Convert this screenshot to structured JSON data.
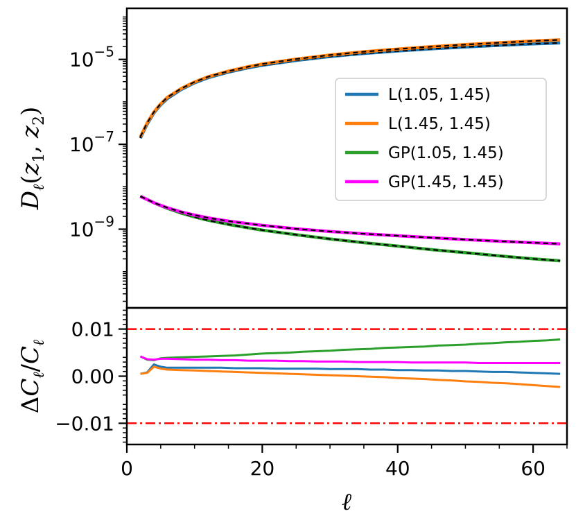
{
  "chart_data": [
    {
      "type": "line",
      "panel": "top",
      "yscale": "log",
      "ylabel": "D_ℓ(z_1, z_2)",
      "ylabel_parts": {
        "D": "D",
        "l": "ℓ",
        "open": "(",
        "z": "z",
        "one": "1",
        "comma": ", ",
        "two": "2",
        "close": ")"
      },
      "xlim": [
        0,
        65
      ],
      "ylim": [
        1.4e-11,
        0.00016
      ],
      "yticks": [
        {
          "value": 1e-09,
          "base": "10",
          "exp": "−9"
        },
        {
          "value": 1e-07,
          "base": "10",
          "exp": "−7"
        },
        {
          "value": 1e-05,
          "base": "10",
          "exp": "−5"
        }
      ],
      "reference_style": "black dashed overlay on each series",
      "legend_position": "center-right",
      "x": [
        2,
        3,
        4,
        5,
        6,
        8,
        10,
        12,
        15,
        18,
        20,
        25,
        30,
        35,
        40,
        45,
        50,
        55,
        60,
        64
      ],
      "series": [
        {
          "name": "L(1.05, 1.45)",
          "color": "#1f77b4",
          "values": [
            1.4e-07,
            3e-07,
            5.5e-07,
            8.5e-07,
            1.2e-06,
            1.95e-06,
            2.8e-06,
            3.7e-06,
            5e-06,
            6.4e-06,
            7.3e-06,
            9.5e-06,
            1.17e-05,
            1.38e-05,
            1.58e-05,
            1.78e-05,
            1.97e-05,
            2.15e-05,
            2.33e-05,
            2.45e-05
          ]
        },
        {
          "name": "L(1.45, 1.45)",
          "color": "#ff7f0e",
          "values": [
            1.5e-07,
            3.2e-07,
            5.8e-07,
            9e-07,
            1.28e-06,
            2.05e-06,
            2.95e-06,
            3.9e-06,
            5.3e-06,
            6.8e-06,
            7.8e-06,
            1.02e-05,
            1.27e-05,
            1.52e-05,
            1.76e-05,
            2e-05,
            2.24e-05,
            2.48e-05,
            2.72e-05,
            2.9e-05
          ]
        },
        {
          "name": "GP(1.05, 1.45)",
          "color": "#2ca02c",
          "values": [
            6e-09,
            5e-09,
            4.2e-09,
            3.6e-09,
            3.1e-09,
            2.4e-09,
            1.95e-09,
            1.62e-09,
            1.3e-09,
            1.07e-09,
            9.5e-10,
            7.4e-10,
            5.9e-10,
            4.8e-10,
            4e-10,
            3.3e-10,
            2.8e-10,
            2.35e-10,
            2e-10,
            1.8e-10
          ]
        },
        {
          "name": "GP(1.45, 1.45)",
          "color": "#ff00ff",
          "values": [
            5.9e-09,
            5e-09,
            4.2e-09,
            3.65e-09,
            3.2e-09,
            2.55e-09,
            2.15e-09,
            1.85e-09,
            1.55e-09,
            1.35e-09,
            1.23e-09,
            1.02e-09,
            8.8e-10,
            7.8e-10,
            7e-10,
            6.3e-10,
            5.7e-10,
            5.2e-10,
            4.8e-10,
            4.5e-10
          ]
        }
      ]
    },
    {
      "type": "line",
      "panel": "bottom",
      "ylabel": "ΔC_ℓ/C_ℓ",
      "ylabel_parts": {
        "delta": "Δ",
        "C1": "C",
        "l1": "ℓ",
        "slash": "/",
        "C2": "C",
        "l2": "ℓ"
      },
      "xlabel": "ℓ",
      "xlim": [
        0,
        65
      ],
      "ylim": [
        -0.0145,
        0.0145
      ],
      "xticks": [
        {
          "value": 0,
          "label": "0"
        },
        {
          "value": 20,
          "label": "20"
        },
        {
          "value": 40,
          "label": "40"
        },
        {
          "value": 60,
          "label": "60"
        }
      ],
      "yticks": [
        {
          "value": 0.01,
          "label": "0.01"
        },
        {
          "value": 0.0,
          "label": "0.00"
        },
        {
          "value": -0.01,
          "label": "−0.01"
        }
      ],
      "reference_lines": {
        "values": [
          0.01,
          -0.01
        ],
        "color": "#ff0000",
        "style": "dash-dot"
      },
      "x": [
        2,
        3,
        4,
        5,
        6,
        8,
        10,
        12,
        14,
        16,
        18,
        20,
        22,
        24,
        26,
        28,
        30,
        32,
        34,
        36,
        38,
        40,
        42,
        44,
        46,
        48,
        50,
        52,
        54,
        56,
        58,
        60,
        62,
        64
      ],
      "series": [
        {
          "name": "L(1.05, 1.45)",
          "color": "#1f77b4",
          "values": [
            0.0005,
            0.0008,
            0.0025,
            0.002,
            0.0018,
            0.0018,
            0.0018,
            0.0018,
            0.0018,
            0.0017,
            0.0017,
            0.0017,
            0.0016,
            0.0016,
            0.0016,
            0.0016,
            0.0015,
            0.0015,
            0.0015,
            0.0014,
            0.0014,
            0.0013,
            0.0013,
            0.0012,
            0.0012,
            0.0011,
            0.0011,
            0.001,
            0.0009,
            0.0009,
            0.0008,
            0.0007,
            0.0006,
            0.0005
          ]
        },
        {
          "name": "L(1.45, 1.45)",
          "color": "#ff7f0e",
          "values": [
            0.0005,
            0.0007,
            0.002,
            0.0016,
            0.0014,
            0.0013,
            0.0012,
            0.0011,
            0.001,
            0.0009,
            0.0008,
            0.0007,
            0.0006,
            0.0005,
            0.0004,
            0.0003,
            0.0002,
            0.0001,
            0.0,
            -0.0001,
            -0.0002,
            -0.0004,
            -0.0005,
            -0.0006,
            -0.0008,
            -0.0009,
            -0.0011,
            -0.0012,
            -0.0014,
            -0.0015,
            -0.0017,
            -0.0019,
            -0.0021,
            -0.0023
          ]
        },
        {
          "name": "GP(1.05, 1.45)",
          "color": "#2ca02c",
          "values": [
            0.0042,
            0.0035,
            0.0034,
            0.0038,
            0.0039,
            0.004,
            0.0041,
            0.0042,
            0.0043,
            0.0044,
            0.0046,
            0.0048,
            0.0049,
            0.005,
            0.0052,
            0.0053,
            0.0054,
            0.0056,
            0.0057,
            0.0058,
            0.006,
            0.0061,
            0.0062,
            0.0063,
            0.0065,
            0.0066,
            0.0067,
            0.0069,
            0.007,
            0.0072,
            0.0073,
            0.0075,
            0.0076,
            0.0078
          ]
        },
        {
          "name": "GP(1.45, 1.45)",
          "color": "#ff00ff",
          "values": [
            0.0042,
            0.0036,
            0.0035,
            0.0037,
            0.0037,
            0.0036,
            0.0035,
            0.0035,
            0.0034,
            0.0034,
            0.0033,
            0.0033,
            0.0033,
            0.0032,
            0.0032,
            0.0031,
            0.0031,
            0.0031,
            0.003,
            0.003,
            0.003,
            0.003,
            0.0029,
            0.0029,
            0.0029,
            0.0029,
            0.0029,
            0.0028,
            0.0028,
            0.0028,
            0.0028,
            0.0028,
            0.0028,
            0.0028
          ]
        }
      ]
    }
  ]
}
